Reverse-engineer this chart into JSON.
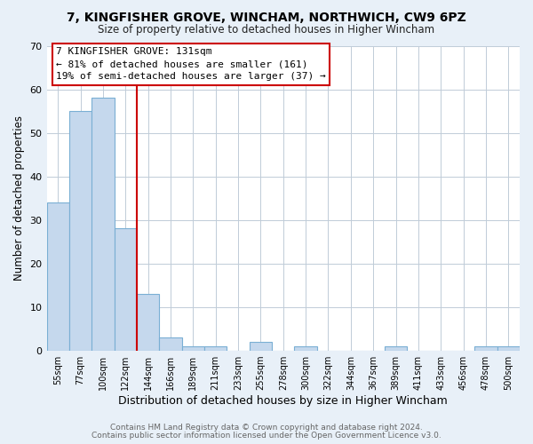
{
  "title": "7, KINGFISHER GROVE, WINCHAM, NORTHWICH, CW9 6PZ",
  "subtitle": "Size of property relative to detached houses in Higher Wincham",
  "xlabel": "Distribution of detached houses by size in Higher Wincham",
  "ylabel": "Number of detached properties",
  "bar_labels": [
    "55sqm",
    "77sqm",
    "100sqm",
    "122sqm",
    "144sqm",
    "166sqm",
    "189sqm",
    "211sqm",
    "233sqm",
    "255sqm",
    "278sqm",
    "300sqm",
    "322sqm",
    "344sqm",
    "367sqm",
    "389sqm",
    "411sqm",
    "433sqm",
    "456sqm",
    "478sqm",
    "500sqm"
  ],
  "bar_values": [
    34,
    55,
    58,
    28,
    13,
    3,
    1,
    1,
    0,
    2,
    0,
    1,
    0,
    0,
    0,
    1,
    0,
    0,
    0,
    1,
    1
  ],
  "bar_color": "#c5d8ed",
  "bar_edge_color": "#7aafd4",
  "vline_x": 3,
  "vline_color": "#cc0000",
  "annotation_title": "7 KINGFISHER GROVE: 131sqm",
  "annotation_line2": "← 81% of detached houses are smaller (161)",
  "annotation_line3": "19% of semi-detached houses are larger (37) →",
  "annotation_box_color": "#ffffff",
  "annotation_box_edge": "#cc0000",
  "ylim": [
    0,
    70
  ],
  "yticks": [
    0,
    10,
    20,
    30,
    40,
    50,
    60,
    70
  ],
  "footer1": "Contains HM Land Registry data © Crown copyright and database right 2024.",
  "footer2": "Contains public sector information licensed under the Open Government Licence v3.0.",
  "bg_color": "#e8f0f8",
  "plot_bg_color": "#e8f0f8",
  "grid_color": "#c0ccd8",
  "plot_area_color": "#ffffff"
}
